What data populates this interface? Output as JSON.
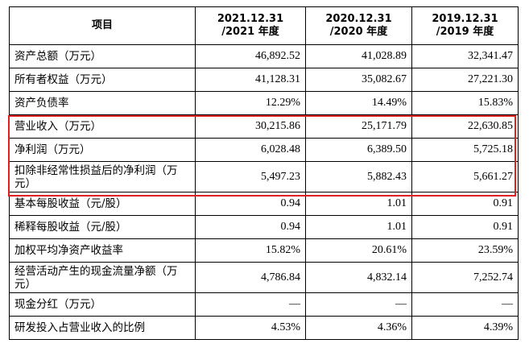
{
  "header": [
    "项目",
    "2021.12.31\n/2021 年度",
    "2020.12.31\n/2020 年度",
    "2019.12.31\n/2019 年度"
  ],
  "rows": [
    {
      "label": "资产总额（万元）",
      "v": [
        "46,892.52",
        "41,028.89",
        "32,341.47"
      ]
    },
    {
      "label": "所有者权益（万元）",
      "v": [
        "41,128.31",
        "35,082.67",
        "27,221.30"
      ]
    },
    {
      "label": "资产负债率",
      "v": [
        "12.29%",
        "14.49%",
        "15.83%"
      ]
    },
    {
      "label": "营业收入（万元）",
      "v": [
        "30,215.86",
        "25,171.79",
        "22,630.85"
      ]
    },
    {
      "label": "净利润（万元）",
      "v": [
        "6,028.48",
        "6,389.50",
        "5,725.18"
      ]
    },
    {
      "label": "扣除非经常性损益后的净利润（万元）",
      "v": [
        "5,497.23",
        "5,882.43",
        "5,661.27"
      ]
    },
    {
      "label": "基本每股收益（元/股）",
      "v": [
        "0.94",
        "1.01",
        "0.91"
      ]
    },
    {
      "label": "稀释每股收益（元/股）",
      "v": [
        "0.94",
        "1.01",
        "0.91"
      ]
    },
    {
      "label": "加权平均净资产收益率",
      "v": [
        "15.82%",
        "20.61%",
        "23.59%"
      ]
    },
    {
      "label": "经营活动产生的现金流量净额（万元）",
      "v": [
        "4,786.84",
        "4,832.14",
        "7,252.74"
      ]
    },
    {
      "label": "现金分红（万元）",
      "v": [
        "—",
        "—",
        "—"
      ]
    },
    {
      "label": "研发投入占营业收入的比例",
      "v": [
        "4.53%",
        "4.36%",
        "4.39%"
      ]
    }
  ],
  "highlight_color": "#e02020"
}
